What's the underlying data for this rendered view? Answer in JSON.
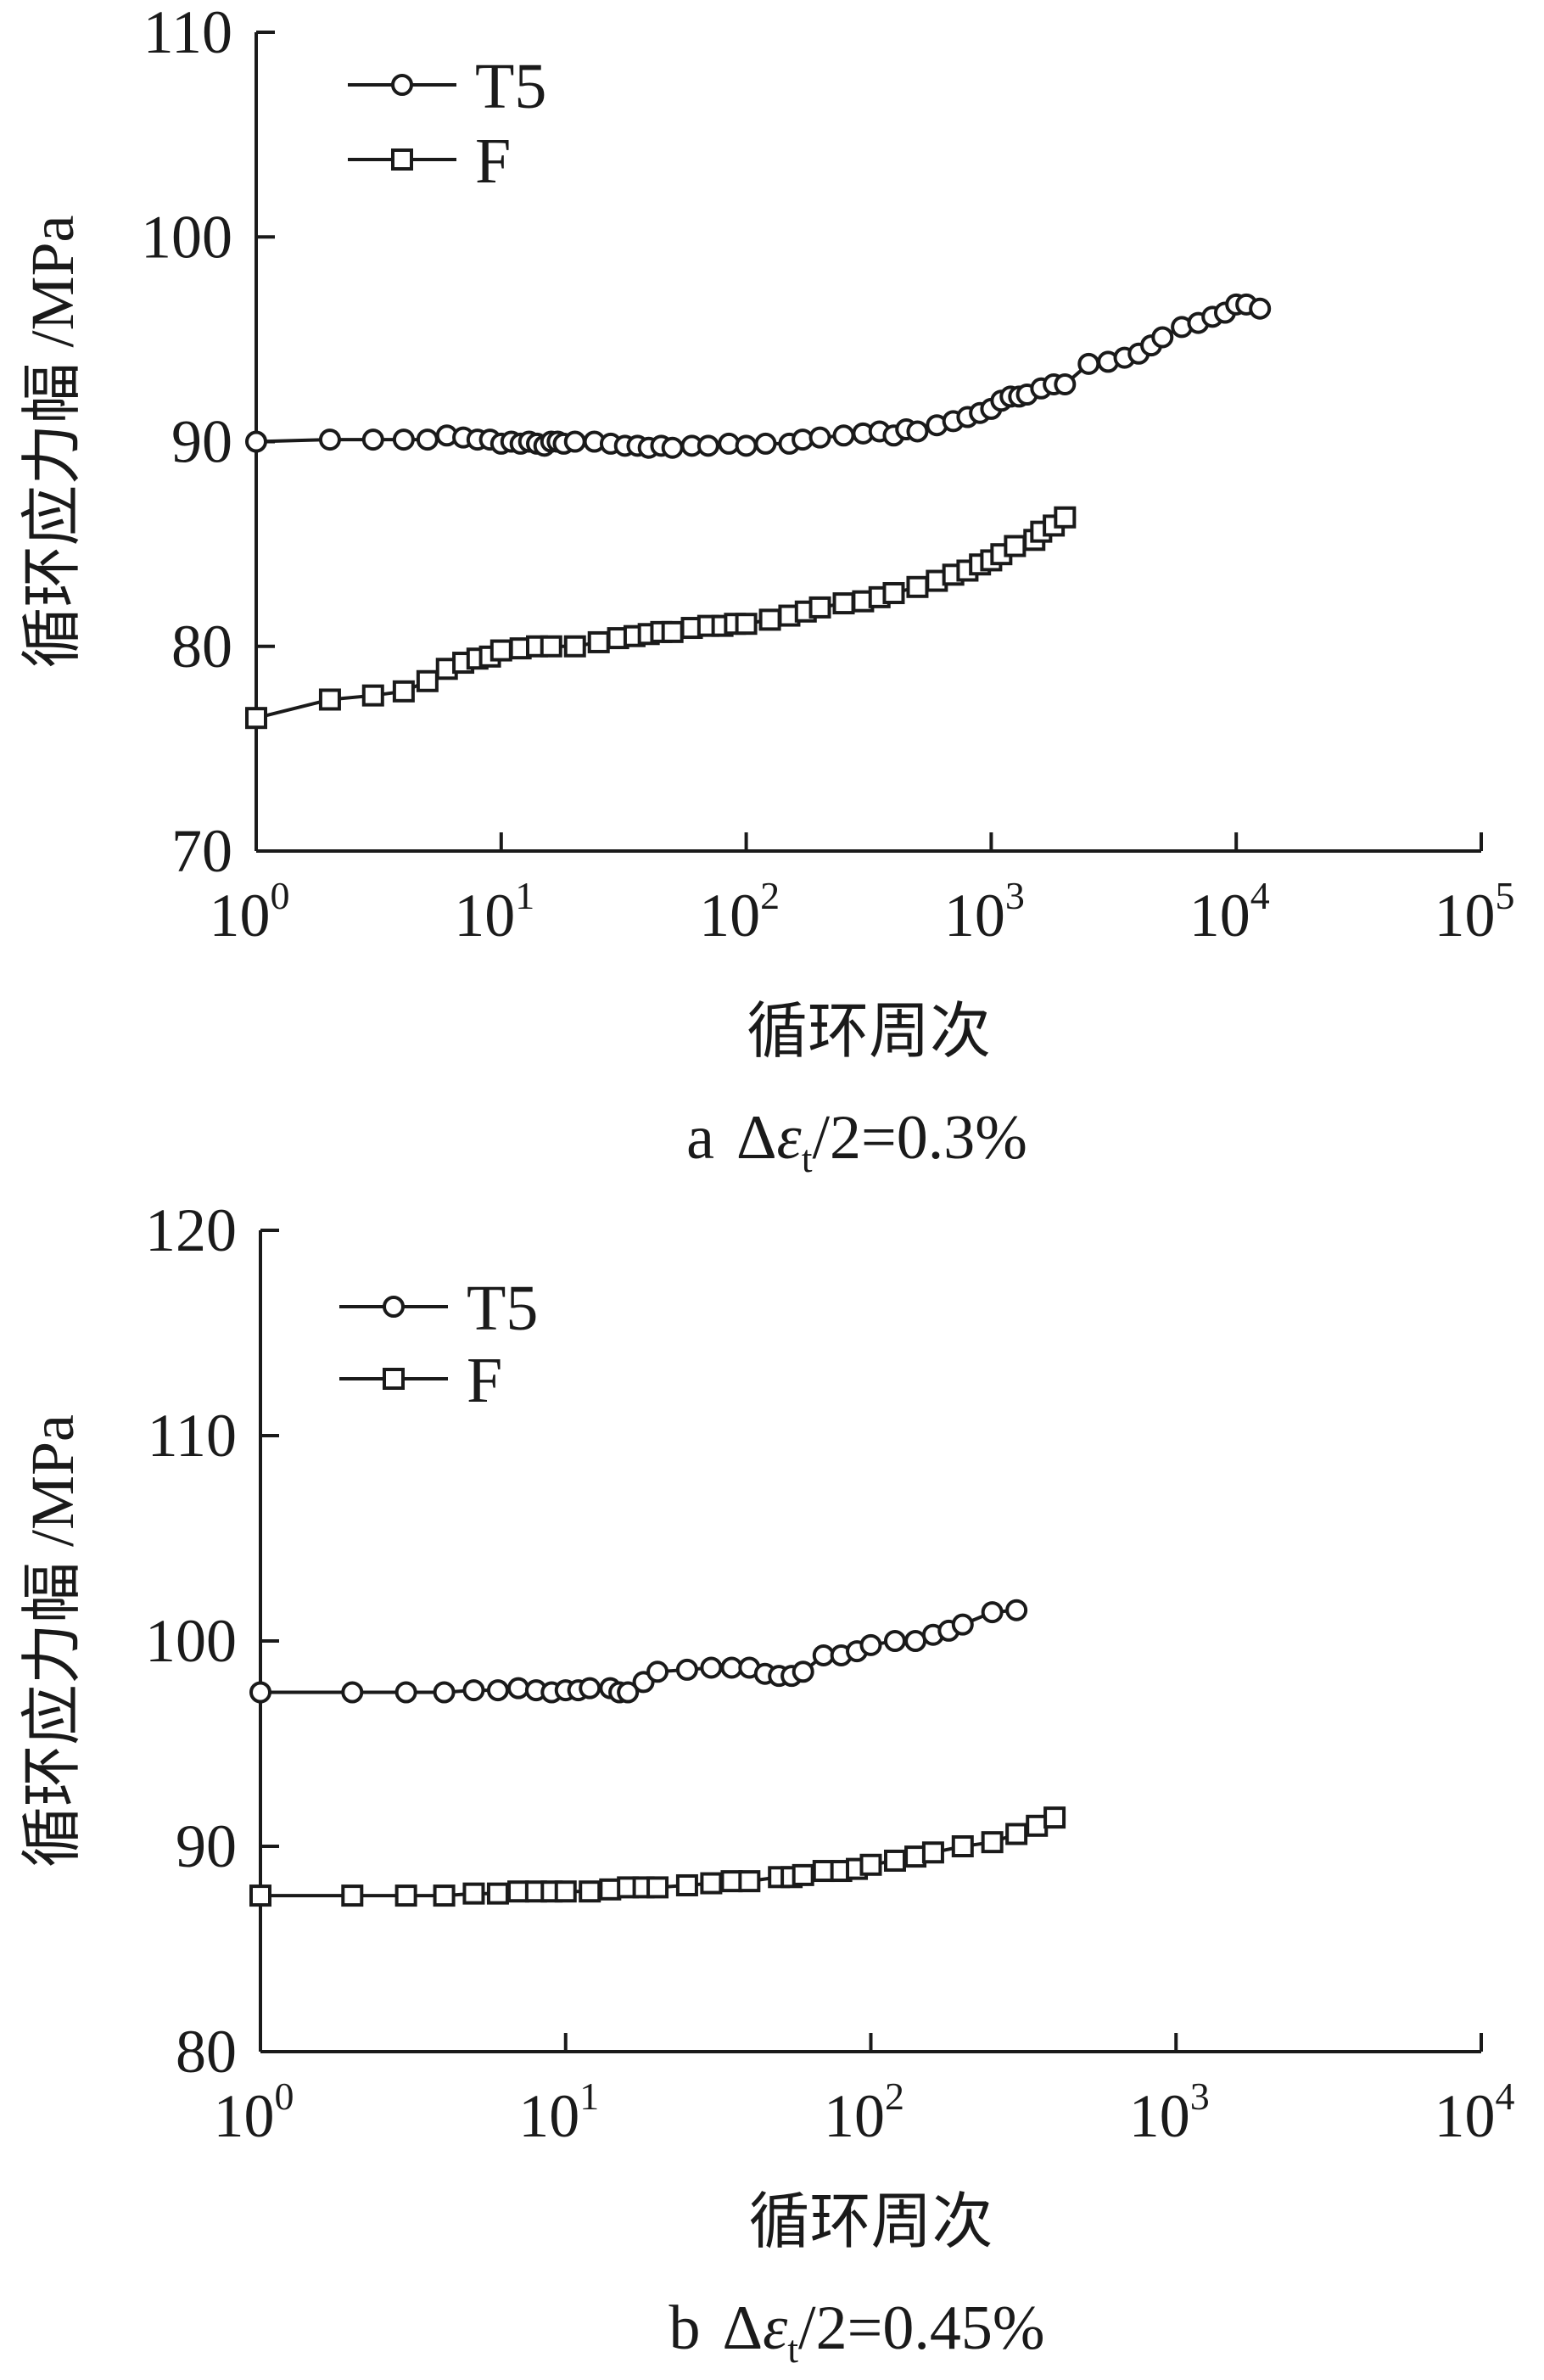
{
  "chart_data": [
    {
      "type": "scatter",
      "caption": {
        "prefix": "a",
        "delta": "Δ",
        "eps": "ε",
        "sub": "t",
        "suffix": "/2=0.3%"
      },
      "xlabel": "循环周次",
      "ylabel": "循环应力幅 /MPa",
      "xscale": "log",
      "xlim": [
        1,
        100000
      ],
      "ylim": [
        70,
        110
      ],
      "xticks": [
        {
          "base": "10",
          "exp": "0"
        },
        {
          "base": "10",
          "exp": "1"
        },
        {
          "base": "10",
          "exp": "2"
        },
        {
          "base": "10",
          "exp": "3"
        },
        {
          "base": "10",
          "exp": "4"
        },
        {
          "base": "10",
          "exp": "5"
        }
      ],
      "yticks": [
        "70",
        "80",
        "90",
        "100",
        "110"
      ],
      "legend_position": "top-left",
      "series": [
        {
          "name": "T5",
          "marker": "circle",
          "points": [
            [
              1,
              90.0
            ],
            [
              2,
              90.1
            ],
            [
              3,
              90.1
            ],
            [
              4,
              90.1
            ],
            [
              5,
              90.1
            ],
            [
              6,
              90.3
            ],
            [
              7,
              90.2
            ],
            [
              8,
              90.1
            ],
            [
              9,
              90.1
            ],
            [
              10,
              89.9
            ],
            [
              11,
              90.0
            ],
            [
              12,
              89.9
            ],
            [
              13,
              90.0
            ],
            [
              14,
              89.9
            ],
            [
              15,
              89.8
            ],
            [
              16,
              90.0
            ],
            [
              17,
              90.0
            ],
            [
              18,
              89.9
            ],
            [
              20,
              90.0
            ],
            [
              24,
              90.0
            ],
            [
              28,
              89.9
            ],
            [
              32,
              89.8
            ],
            [
              36,
              89.8
            ],
            [
              40,
              89.7
            ],
            [
              45,
              89.8
            ],
            [
              50,
              89.7
            ],
            [
              60,
              89.8
            ],
            [
              70,
              89.8
            ],
            [
              85,
              89.9
            ],
            [
              100,
              89.8
            ],
            [
              120,
              89.9
            ],
            [
              150,
              89.9
            ],
            [
              170,
              90.1
            ],
            [
              200,
              90.2
            ],
            [
              250,
              90.3
            ],
            [
              300,
              90.4
            ],
            [
              350,
              90.5
            ],
            [
              400,
              90.3
            ],
            [
              450,
              90.6
            ],
            [
              500,
              90.5
            ],
            [
              600,
              90.8
            ],
            [
              700,
              91.0
            ],
            [
              800,
              91.2
            ],
            [
              900,
              91.4
            ],
            [
              1000,
              91.6
            ],
            [
              1100,
              92.0
            ],
            [
              1200,
              92.2
            ],
            [
              1300,
              92.2
            ],
            [
              1400,
              92.3
            ],
            [
              1600,
              92.6
            ],
            [
              1800,
              92.8
            ],
            [
              2000,
              92.8
            ],
            [
              2500,
              93.8
            ],
            [
              3000,
              93.9
            ],
            [
              3500,
              94.1
            ],
            [
              4000,
              94.3
            ],
            [
              4500,
              94.7
            ],
            [
              5000,
              95.1
            ],
            [
              6000,
              95.6
            ],
            [
              7000,
              95.8
            ],
            [
              8000,
              96.1
            ],
            [
              9000,
              96.3
            ],
            [
              10000,
              96.7
            ],
            [
              11000,
              96.7
            ],
            [
              12500,
              96.5
            ]
          ]
        },
        {
          "name": "F",
          "marker": "square",
          "points": [
            [
              1,
              76.5
            ],
            [
              2,
              77.4
            ],
            [
              3,
              77.6
            ],
            [
              4,
              77.8
            ],
            [
              5,
              78.3
            ],
            [
              6,
              78.9
            ],
            [
              7,
              79.2
            ],
            [
              8,
              79.4
            ],
            [
              9,
              79.5
            ],
            [
              10,
              79.8
            ],
            [
              12,
              79.9
            ],
            [
              14,
              80.0
            ],
            [
              16,
              80.0
            ],
            [
              20,
              80.0
            ],
            [
              25,
              80.2
            ],
            [
              30,
              80.4
            ],
            [
              35,
              80.5
            ],
            [
              40,
              80.6
            ],
            [
              45,
              80.7
            ],
            [
              50,
              80.7
            ],
            [
              60,
              80.9
            ],
            [
              70,
              81.0
            ],
            [
              80,
              81.0
            ],
            [
              90,
              81.1
            ],
            [
              100,
              81.1
            ],
            [
              125,
              81.3
            ],
            [
              150,
              81.5
            ],
            [
              175,
              81.7
            ],
            [
              200,
              81.9
            ],
            [
              250,
              82.1
            ],
            [
              300,
              82.2
            ],
            [
              350,
              82.4
            ],
            [
              400,
              82.6
            ],
            [
              500,
              82.9
            ],
            [
              600,
              83.2
            ],
            [
              700,
              83.5
            ],
            [
              800,
              83.7
            ],
            [
              900,
              84.0
            ],
            [
              1000,
              84.2
            ],
            [
              1100,
              84.5
            ],
            [
              1250,
              84.9
            ],
            [
              1500,
              85.2
            ],
            [
              1600,
              85.6
            ],
            [
              1800,
              85.9
            ],
            [
              2000,
              86.3
            ]
          ]
        }
      ]
    },
    {
      "type": "scatter",
      "caption": {
        "prefix": "b",
        "delta": "Δ",
        "eps": "ε",
        "sub": "t",
        "suffix": "/2=0.45%"
      },
      "xlabel": "循环周次",
      "ylabel": "循环应力幅 /MPa",
      "xscale": "log",
      "xlim": [
        1,
        10000
      ],
      "ylim": [
        80,
        120
      ],
      "xticks": [
        {
          "base": "10",
          "exp": "0"
        },
        {
          "base": "10",
          "exp": "1"
        },
        {
          "base": "10",
          "exp": "2"
        },
        {
          "base": "10",
          "exp": "3"
        },
        {
          "base": "10",
          "exp": "4"
        }
      ],
      "yticks": [
        "80",
        "90",
        "100",
        "110",
        "120"
      ],
      "legend_position": "top-left",
      "series": [
        {
          "name": "T5",
          "marker": "circle",
          "points": [
            [
              1,
              97.5
            ],
            [
              2,
              97.5
            ],
            [
              3,
              97.5
            ],
            [
              4,
              97.5
            ],
            [
              5,
              97.6
            ],
            [
              6,
              97.6
            ],
            [
              7,
              97.7
            ],
            [
              8,
              97.6
            ],
            [
              9,
              97.5
            ],
            [
              10,
              97.6
            ],
            [
              11,
              97.6
            ],
            [
              12,
              97.7
            ],
            [
              14,
              97.7
            ],
            [
              15,
              97.5
            ],
            [
              16,
              97.5
            ],
            [
              18,
              98.0
            ],
            [
              20,
              98.5
            ],
            [
              25,
              98.6
            ],
            [
              30,
              98.7
            ],
            [
              35,
              98.7
            ],
            [
              40,
              98.7
            ],
            [
              45,
              98.4
            ],
            [
              50,
              98.3
            ],
            [
              55,
              98.3
            ],
            [
              60,
              98.5
            ],
            [
              70,
              99.3
            ],
            [
              80,
              99.3
            ],
            [
              90,
              99.5
            ],
            [
              100,
              99.8
            ],
            [
              120,
              100.0
            ],
            [
              140,
              100.0
            ],
            [
              160,
              100.3
            ],
            [
              180,
              100.5
            ],
            [
              200,
              100.8
            ],
            [
              250,
              101.4
            ],
            [
              300,
              101.5
            ]
          ]
        },
        {
          "name": "F",
          "marker": "square",
          "points": [
            [
              1,
              87.6
            ],
            [
              2,
              87.6
            ],
            [
              3,
              87.6
            ],
            [
              4,
              87.6
            ],
            [
              5,
              87.7
            ],
            [
              6,
              87.7
            ],
            [
              7,
              87.8
            ],
            [
              8,
              87.8
            ],
            [
              9,
              87.8
            ],
            [
              10,
              87.8
            ],
            [
              12,
              87.8
            ],
            [
              14,
              87.9
            ],
            [
              16,
              88.0
            ],
            [
              18,
              88.0
            ],
            [
              20,
              88.0
            ],
            [
              25,
              88.1
            ],
            [
              30,
              88.2
            ],
            [
              35,
              88.3
            ],
            [
              40,
              88.3
            ],
            [
              50,
              88.5
            ],
            [
              55,
              88.5
            ],
            [
              60,
              88.6
            ],
            [
              70,
              88.8
            ],
            [
              80,
              88.8
            ],
            [
              90,
              88.9
            ],
            [
              100,
              89.1
            ],
            [
              120,
              89.3
            ],
            [
              140,
              89.5
            ],
            [
              160,
              89.7
            ],
            [
              200,
              90.0
            ],
            [
              250,
              90.2
            ],
            [
              300,
              90.6
            ],
            [
              350,
              91.0
            ],
            [
              400,
              91.4
            ]
          ]
        }
      ]
    }
  ]
}
